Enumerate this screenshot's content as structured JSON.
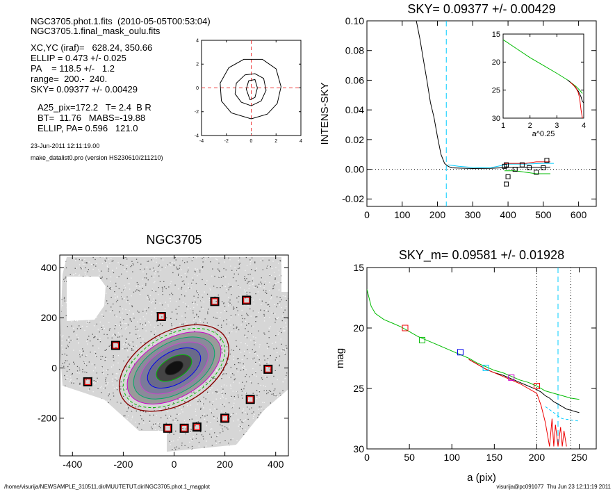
{
  "header": {
    "line1": "NGC3705.phot.1.fits  (2010-05-05T00:53:04)",
    "line2": "NGC3705.1.final_mask_oulu.fits",
    "params": [
      "XC,YC (iraf)=   628.24, 350.66",
      "ELLIP = 0.473 +/- 0.025",
      "PA    = 118.5 +/-   1.2",
      "range=  200.-  240.",
      "SKY= 0.09377 +/- 0.00429"
    ],
    "results": [
      "A25_pix=172.2   T= 2.4  B R",
      "BT=  11.76   MABS=-19.88",
      "ELLIP, PA= 0.596   121.0"
    ],
    "date": "23-Jun-2011 12:11:19.00",
    "program": "make_datalist0.pro (version HS230610/211210)"
  },
  "footer": {
    "path": "/home/visurija/NEWSAMPLE_310511.dir/MUUTETUT.dir/NGC3705.phot.1_magplot",
    "user": "visurija@pc091077  Thu Jun 23 12:11:19 2011"
  },
  "colors": {
    "cyan": "#00ccff",
    "green": "#00bb00",
    "red": "#ee0000",
    "blue": "#0000ee",
    "magenta": "#cc00cc",
    "dark_red": "#880000"
  },
  "chart_data": [
    {
      "id": "contour-panel",
      "type": "contour",
      "title": "",
      "xlim": [
        -4,
        4
      ],
      "ylim": [
        -4,
        4
      ],
      "xticks": [
        -4,
        -2,
        0,
        2,
        4
      ],
      "yticks": [
        -4,
        -2,
        0,
        2,
        4
      ],
      "xtick_labels": [
        "-4",
        "-2",
        "0",
        "2",
        "4"
      ],
      "ytick_labels": [
        "-4",
        "-2",
        "0",
        "2",
        "4"
      ],
      "crosshair": [
        0,
        0
      ],
      "contours": [
        [
          [
            0.0,
            -2.6
          ],
          [
            1.3,
            -2.2
          ],
          [
            2.1,
            -1.3
          ],
          [
            2.4,
            0.1
          ],
          [
            2.0,
            1.6
          ],
          [
            0.9,
            2.4
          ],
          [
            -0.6,
            2.4
          ],
          [
            -1.8,
            1.7
          ],
          [
            -2.5,
            0.4
          ],
          [
            -2.4,
            -1.1
          ],
          [
            -1.6,
            -2.1
          ],
          [
            0.0,
            -2.6
          ]
        ],
        [
          [
            0.0,
            -1.5
          ],
          [
            0.8,
            -1.1
          ],
          [
            1.2,
            -0.2
          ],
          [
            1.0,
            0.8
          ],
          [
            0.3,
            1.2
          ],
          [
            -0.5,
            1.1
          ],
          [
            -1.2,
            0.4
          ],
          [
            -1.3,
            -0.5
          ],
          [
            -0.8,
            -1.2
          ],
          [
            0.0,
            -1.5
          ]
        ],
        [
          [
            -0.1,
            -1.0
          ],
          [
            0.3,
            -0.8
          ],
          [
            0.5,
            0.0
          ],
          [
            0.3,
            0.7
          ],
          [
            -0.2,
            0.6
          ],
          [
            -0.4,
            -0.1
          ],
          [
            -0.1,
            -1.0
          ]
        ]
      ]
    },
    {
      "id": "sky-panel",
      "type": "line",
      "title": "SKY= 0.09377 +/- 0.00429",
      "xlabel": "",
      "ylabel": "INTENS-SKY",
      "xlim": [
        0,
        650
      ],
      "ylim": [
        -0.025,
        0.1
      ],
      "xticks": [
        0,
        100,
        200,
        300,
        400,
        500,
        600
      ],
      "yticks": [
        -0.02,
        0.0,
        0.02,
        0.04,
        0.06,
        0.08,
        0.1
      ],
      "xtick_labels": [
        "0",
        "100",
        "200",
        "300",
        "400",
        "500",
        "600"
      ],
      "ytick_labels": [
        "-0.02",
        "0.00",
        "0.02",
        "0.04",
        "0.06",
        "0.08",
        "0.10"
      ],
      "vline": 225,
      "zero_line": 0.0,
      "series": [
        {
          "color": "#000000",
          "x": [
            140,
            150,
            160,
            170,
            180,
            190,
            200,
            210,
            220,
            230,
            240,
            260,
            300,
            350,
            400,
            450,
            500,
            520
          ],
          "y": [
            0.1,
            0.088,
            0.074,
            0.06,
            0.045,
            0.035,
            0.022,
            0.01,
            0.004,
            0.002,
            0.001,
            0.0008,
            0.0005,
            0.0006,
            0.0012,
            0.0014,
            0.0012,
            0.0015
          ]
        },
        {
          "color": "#00ccff",
          "x": [
            230,
            260,
            300,
            350,
            400,
            450,
            500,
            530
          ],
          "y": [
            0.003,
            0.002,
            0.0012,
            0.001,
            0.0035,
            0.0035,
            0.004,
            0.004
          ]
        },
        {
          "color": "#00bb00",
          "x": [
            390,
            420,
            450,
            480,
            510,
            520
          ],
          "y": [
            -0.001,
            -0.001,
            -0.002,
            -0.003,
            -0.003,
            -0.003
          ]
        },
        {
          "color": "#ee0000",
          "x": [
            390,
            420,
            450,
            480,
            510,
            520
          ],
          "y": [
            0.004,
            0.004,
            0.004,
            0.005,
            0.005,
            0.005
          ]
        }
      ],
      "markers": [
        [
          390,
          0.002
        ],
        [
          395,
          0.003
        ],
        [
          400,
          -0.005
        ],
        [
          420,
          0.0
        ],
        [
          440,
          0.003
        ],
        [
          460,
          0.001
        ],
        [
          480,
          -0.002
        ],
        [
          500,
          0.001
        ],
        [
          510,
          0.006
        ],
        [
          395,
          -0.01
        ]
      ],
      "inset": {
        "xlabel": "a^0.25",
        "xlim": [
          1,
          4
        ],
        "ylim": [
          30,
          15
        ],
        "xticks": [
          1,
          2,
          3,
          4
        ],
        "yticks": [
          15,
          20,
          25,
          30
        ],
        "xtick_labels": [
          "1",
          "2",
          "3",
          "4"
        ],
        "ytick_labels": [
          "15",
          "20",
          "25",
          "30"
        ],
        "series": [
          {
            "color": "#00bb00",
            "x": [
              1.0,
              1.5,
              2.0,
              2.5,
              3.0,
              3.4,
              3.7,
              3.85,
              3.95
            ],
            "y": [
              16.0,
              17.6,
              19.2,
              20.6,
              22.0,
              23.2,
              24.3,
              25.0,
              25.6
            ]
          },
          {
            "color": "#000000",
            "x": [
              3.4,
              3.6,
              3.8,
              3.9,
              3.95,
              4.0
            ],
            "y": [
              23.2,
              24.0,
              25.2,
              26.2,
              27.0,
              27.3
            ]
          },
          {
            "color": "#ee0000",
            "x": [
              3.5,
              3.7,
              3.8,
              3.85,
              3.9,
              3.95
            ],
            "y": [
              23.6,
              24.5,
              25.5,
              26.5,
              28.5,
              30.0
            ]
          }
        ]
      }
    },
    {
      "id": "galaxy-panel",
      "type": "scatter",
      "title": "NGC3705",
      "xlabel": "",
      "ylabel": "",
      "xlim": [
        -450,
        450
      ],
      "ylim": [
        -350,
        450
      ],
      "xticks": [
        -400,
        -200,
        0,
        200,
        400
      ],
      "yticks": [
        -200,
        0,
        200,
        400
      ],
      "xtick_labels": [
        "-400",
        "-200",
        "0",
        "200",
        "400"
      ],
      "ytick_labels": [
        "-200",
        "0",
        "200",
        "400"
      ],
      "masked_stars": [
        [
          -230,
          90
        ],
        [
          -50,
          205
        ],
        [
          160,
          265
        ],
        [
          285,
          270
        ],
        [
          -340,
          -55
        ],
        [
          370,
          -5
        ],
        [
          300,
          -125
        ],
        [
          -25,
          -240
        ],
        [
          90,
          -235
        ],
        [
          40,
          -240
        ],
        [
          200,
          -200
        ]
      ]
    },
    {
      "id": "mag-panel",
      "type": "line",
      "title": "SKY_m=  0.09581 +/- 0.01928",
      "xlabel": "a (pix)",
      "ylabel": "mag",
      "xlim": [
        0,
        270
      ],
      "ylim": [
        30,
        15
      ],
      "xticks": [
        0,
        50,
        100,
        150,
        200,
        250
      ],
      "yticks": [
        15,
        20,
        25,
        30
      ],
      "xtick_labels": [
        "0",
        "50",
        "100",
        "150",
        "200",
        "250"
      ],
      "ytick_labels": [
        "15",
        "20",
        "25",
        "30"
      ],
      "vlines_dotted": [
        200,
        240
      ],
      "vline_dashed": 225,
      "series": [
        {
          "color": "#00bb00",
          "x": [
            0,
            5,
            10,
            20,
            30,
            40,
            50,
            60,
            70,
            80,
            90,
            100,
            110,
            120,
            130,
            140,
            150,
            160,
            170,
            180,
            190,
            200,
            210,
            220,
            230,
            240,
            250
          ],
          "y": [
            16.8,
            18.2,
            18.8,
            19.3,
            19.6,
            19.9,
            20.3,
            20.7,
            21.0,
            21.3,
            21.6,
            21.9,
            22.2,
            22.5,
            22.9,
            23.2,
            23.5,
            23.7,
            24.0,
            24.3,
            24.5,
            24.8,
            25.2,
            25.4,
            25.6,
            25.8,
            25.9
          ]
        },
        {
          "color": "#000000",
          "x": [
            120,
            130,
            140,
            150,
            160,
            170,
            180,
            190,
            200,
            205,
            210,
            215,
            220,
            225,
            230,
            235,
            240,
            245,
            250
          ],
          "y": [
            22.6,
            23.0,
            23.4,
            23.7,
            23.9,
            24.2,
            24.5,
            24.8,
            25.1,
            25.3,
            25.6,
            25.8,
            26.1,
            26.3,
            26.5,
            26.7,
            26.8,
            26.9,
            27.0
          ]
        },
        {
          "color": "#ee0000",
          "x": [
            120,
            140,
            160,
            180,
            190,
            200,
            205,
            210,
            215,
            218,
            220,
            222,
            225,
            228,
            230,
            232,
            235
          ],
          "y": [
            22.6,
            23.4,
            24.0,
            24.6,
            25.0,
            25.4,
            26.4,
            27.8,
            29.8,
            27.5,
            29.8,
            28.0,
            29.8,
            28.2,
            29.8,
            28.5,
            29.8
          ]
        },
        {
          "color": "#00ccff",
          "x": [
            210,
            220,
            225,
            230,
            240,
            250
          ],
          "y": [
            26.5,
            27.0,
            27.3,
            27.5,
            27.6,
            27.7
          ]
        }
      ],
      "markers": [
        {
          "x": 45,
          "y": 20.0,
          "color": "#ee0000"
        },
        {
          "x": 65,
          "y": 21.0,
          "color": "#00bb00"
        },
        {
          "x": 110,
          "y": 22.0,
          "color": "#0000ee"
        },
        {
          "x": 140,
          "y": 23.3,
          "color": "#00ccff"
        },
        {
          "x": 170,
          "y": 24.1,
          "color": "#cc00cc"
        },
        {
          "x": 200,
          "y": 24.8,
          "color": "#ee0000"
        }
      ]
    }
  ]
}
